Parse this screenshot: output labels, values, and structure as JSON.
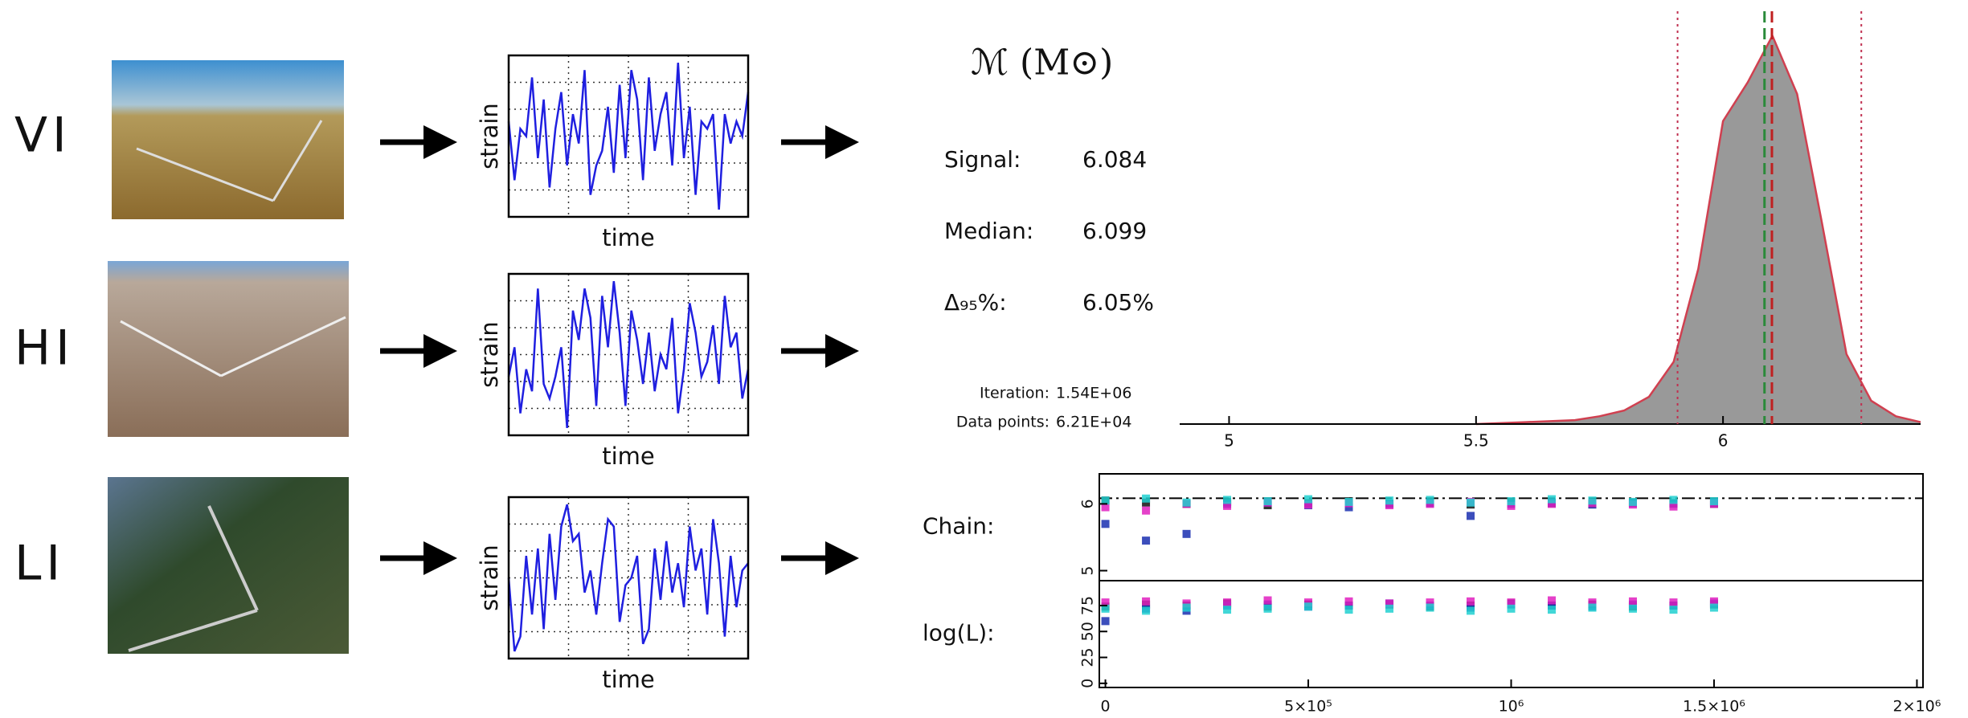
{
  "detectors": [
    {
      "label": "VI",
      "strain": {
        "y_label": "strain",
        "x_label": "time",
        "ylim": [
          -1.1,
          1.1
        ],
        "values": [
          0.2,
          -0.6,
          0.1,
          0.0,
          0.8,
          -0.3,
          0.5,
          -0.7,
          0.1,
          0.6,
          -0.4,
          0.3,
          -0.1,
          0.9,
          -0.8,
          -0.4,
          -0.2,
          0.4,
          -0.5,
          0.7,
          -0.3,
          0.9,
          0.5,
          -0.6,
          0.8,
          -0.2,
          0.3,
          0.6,
          -0.4,
          1.0,
          -0.3,
          0.4,
          -0.8,
          0.2,
          0.1,
          0.3,
          -1.0,
          0.3,
          -0.1,
          0.2,
          0.0,
          0.6
        ]
      }
    },
    {
      "label": "HI",
      "strain": {
        "y_label": "strain",
        "x_label": "time",
        "ylim": [
          -1.1,
          1.1
        ],
        "values": [
          -0.3,
          0.1,
          -0.8,
          -0.2,
          -0.5,
          0.9,
          -0.4,
          -0.6,
          -0.3,
          0.1,
          -1.0,
          0.6,
          0.2,
          0.9,
          0.5,
          -0.7,
          0.8,
          0.1,
          1.0,
          0.3,
          -0.7,
          0.6,
          0.2,
          -0.4,
          0.3,
          -0.5,
          0.0,
          -0.2,
          0.5,
          -0.8,
          -0.2,
          0.7,
          0.3,
          -0.3,
          -0.1,
          0.4,
          -0.4,
          0.8,
          0.1,
          0.3,
          -0.6,
          -0.2
        ]
      }
    },
    {
      "label": "LI",
      "strain": {
        "y_label": "strain",
        "x_label": "time",
        "ylim": [
          -1.1,
          1.1
        ],
        "values": [
          0.0,
          -1.0,
          -0.8,
          0.3,
          -0.5,
          0.4,
          -0.7,
          0.6,
          -0.3,
          0.7,
          1.0,
          0.5,
          0.6,
          -0.2,
          0.1,
          -0.5,
          0.2,
          0.8,
          0.7,
          -0.6,
          -0.1,
          0.0,
          0.3,
          -0.9,
          -0.7,
          0.4,
          -0.3,
          0.5,
          -0.2,
          0.2,
          -0.4,
          0.7,
          0.1,
          0.4,
          -0.5,
          0.8,
          0.2,
          -0.8,
          0.3,
          -0.4,
          0.1,
          0.2
        ]
      }
    }
  ],
  "parameter": "ℳ (M⊙)",
  "stats": [
    {
      "label": "Signal:",
      "value": "6.084"
    },
    {
      "label": "Median:",
      "value": "6.099"
    },
    {
      "label": "Δ₉₅%:",
      "value": "6.05%"
    }
  ],
  "run": [
    {
      "label": "Iteration:",
      "value": "1.54E+06"
    },
    {
      "label": "Data points:",
      "value": "6.21E+04"
    }
  ],
  "chart_data": [
    {
      "type": "area",
      "x": [
        5.5,
        5.6,
        5.7,
        5.75,
        5.8,
        5.85,
        5.9,
        5.95,
        6.0,
        6.05,
        6.1,
        6.15,
        6.2,
        6.25,
        6.3,
        6.35,
        6.4
      ],
      "values": [
        0,
        0.005,
        0.01,
        0.02,
        0.035,
        0.07,
        0.16,
        0.4,
        0.78,
        0.88,
        1.0,
        0.85,
        0.52,
        0.18,
        0.06,
        0.02,
        0.005
      ],
      "xlim": [
        4.9,
        6.4
      ],
      "ylim": [
        0,
        1.03
      ],
      "xticks": [
        5,
        5.5,
        6
      ],
      "interval": [
        5.908,
        6.28
      ],
      "color": "#999999",
      "line_color": "#d04050"
    },
    {
      "type": "scatter",
      "y_label": "Chain:",
      "xlim": [
        -15000,
        2015000
      ],
      "ylim": [
        4.85,
        6.45
      ],
      "yticks": [
        5,
        6
      ],
      "x": [
        0,
        100000,
        200000,
        300000,
        400000,
        500000,
        600000,
        700000,
        800000,
        900000,
        1000000,
        1100000,
        1200000,
        1300000,
        1400000,
        1500000
      ],
      "series": [
        {
          "color": "#111111",
          "values": [
            6.05,
            6.02,
            6.0,
            6.03,
            5.98,
            6.01,
            6.04,
            6.0,
            6.02,
            5.99,
            6.03,
            6.01,
            6.0,
            6.02,
            6.01,
            6.0
          ]
        },
        {
          "color": "#1a2fb0",
          "values": [
            5.7,
            5.45,
            5.55,
            6.0,
            6.02,
            5.98,
            5.95,
            6.0,
            6.01,
            5.82,
            6.0,
            6.02,
            5.99,
            6.01,
            6.0,
            6.02
          ]
        },
        {
          "color": "#e020c0",
          "values": [
            5.95,
            5.9,
            6.0,
            5.97,
            6.02,
            5.99,
            6.01,
            5.98,
            6.0,
            6.03,
            5.97,
            6.0,
            6.01,
            5.99,
            5.96,
            6.0
          ]
        },
        {
          "color": "#20d0d0",
          "values": [
            6.05,
            6.08,
            6.02,
            6.06,
            6.04,
            6.07,
            6.03,
            6.05,
            6.06,
            6.02,
            6.04,
            6.07,
            6.05,
            6.03,
            6.06,
            6.04
          ]
        }
      ]
    },
    {
      "type": "scatter",
      "y_label": "log(L):",
      "xlim": [
        -15000,
        2015000
      ],
      "ylim": [
        -4,
        99
      ],
      "yticks": [
        0,
        25,
        50,
        75
      ],
      "xticks": [
        0,
        {
          "value": 500000,
          "label": "5×10⁵"
        },
        {
          "value": 1000000,
          "label": "10⁶"
        },
        {
          "value": 1500000,
          "label": "1.5×10⁶"
        },
        {
          "value": 2000000,
          "label": "2×10⁶"
        }
      ],
      "x": [
        0,
        100000,
        200000,
        300000,
        400000,
        500000,
        600000,
        700000,
        800000,
        900000,
        1000000,
        1100000,
        1200000,
        1300000,
        1400000,
        1500000
      ],
      "series": [
        {
          "color": "#111111",
          "values": [
            74,
            76,
            75,
            77,
            74,
            76,
            75,
            76,
            74,
            75,
            77,
            75,
            76,
            74,
            75,
            76
          ]
        },
        {
          "color": "#1a2fb0",
          "values": [
            60,
            72,
            70,
            75,
            76,
            74,
            75,
            77,
            75,
            73,
            76,
            75,
            74,
            76,
            75,
            77
          ]
        },
        {
          "color": "#e020c0",
          "values": [
            78,
            79,
            77,
            78,
            80,
            78,
            79,
            77,
            78,
            79,
            78,
            80,
            78,
            79,
            78,
            79
          ]
        },
        {
          "color": "#20d0d0",
          "values": [
            72,
            70,
            73,
            71,
            72,
            74,
            71,
            72,
            73,
            70,
            72,
            71,
            73,
            72,
            71,
            73
          ]
        }
      ]
    }
  ]
}
